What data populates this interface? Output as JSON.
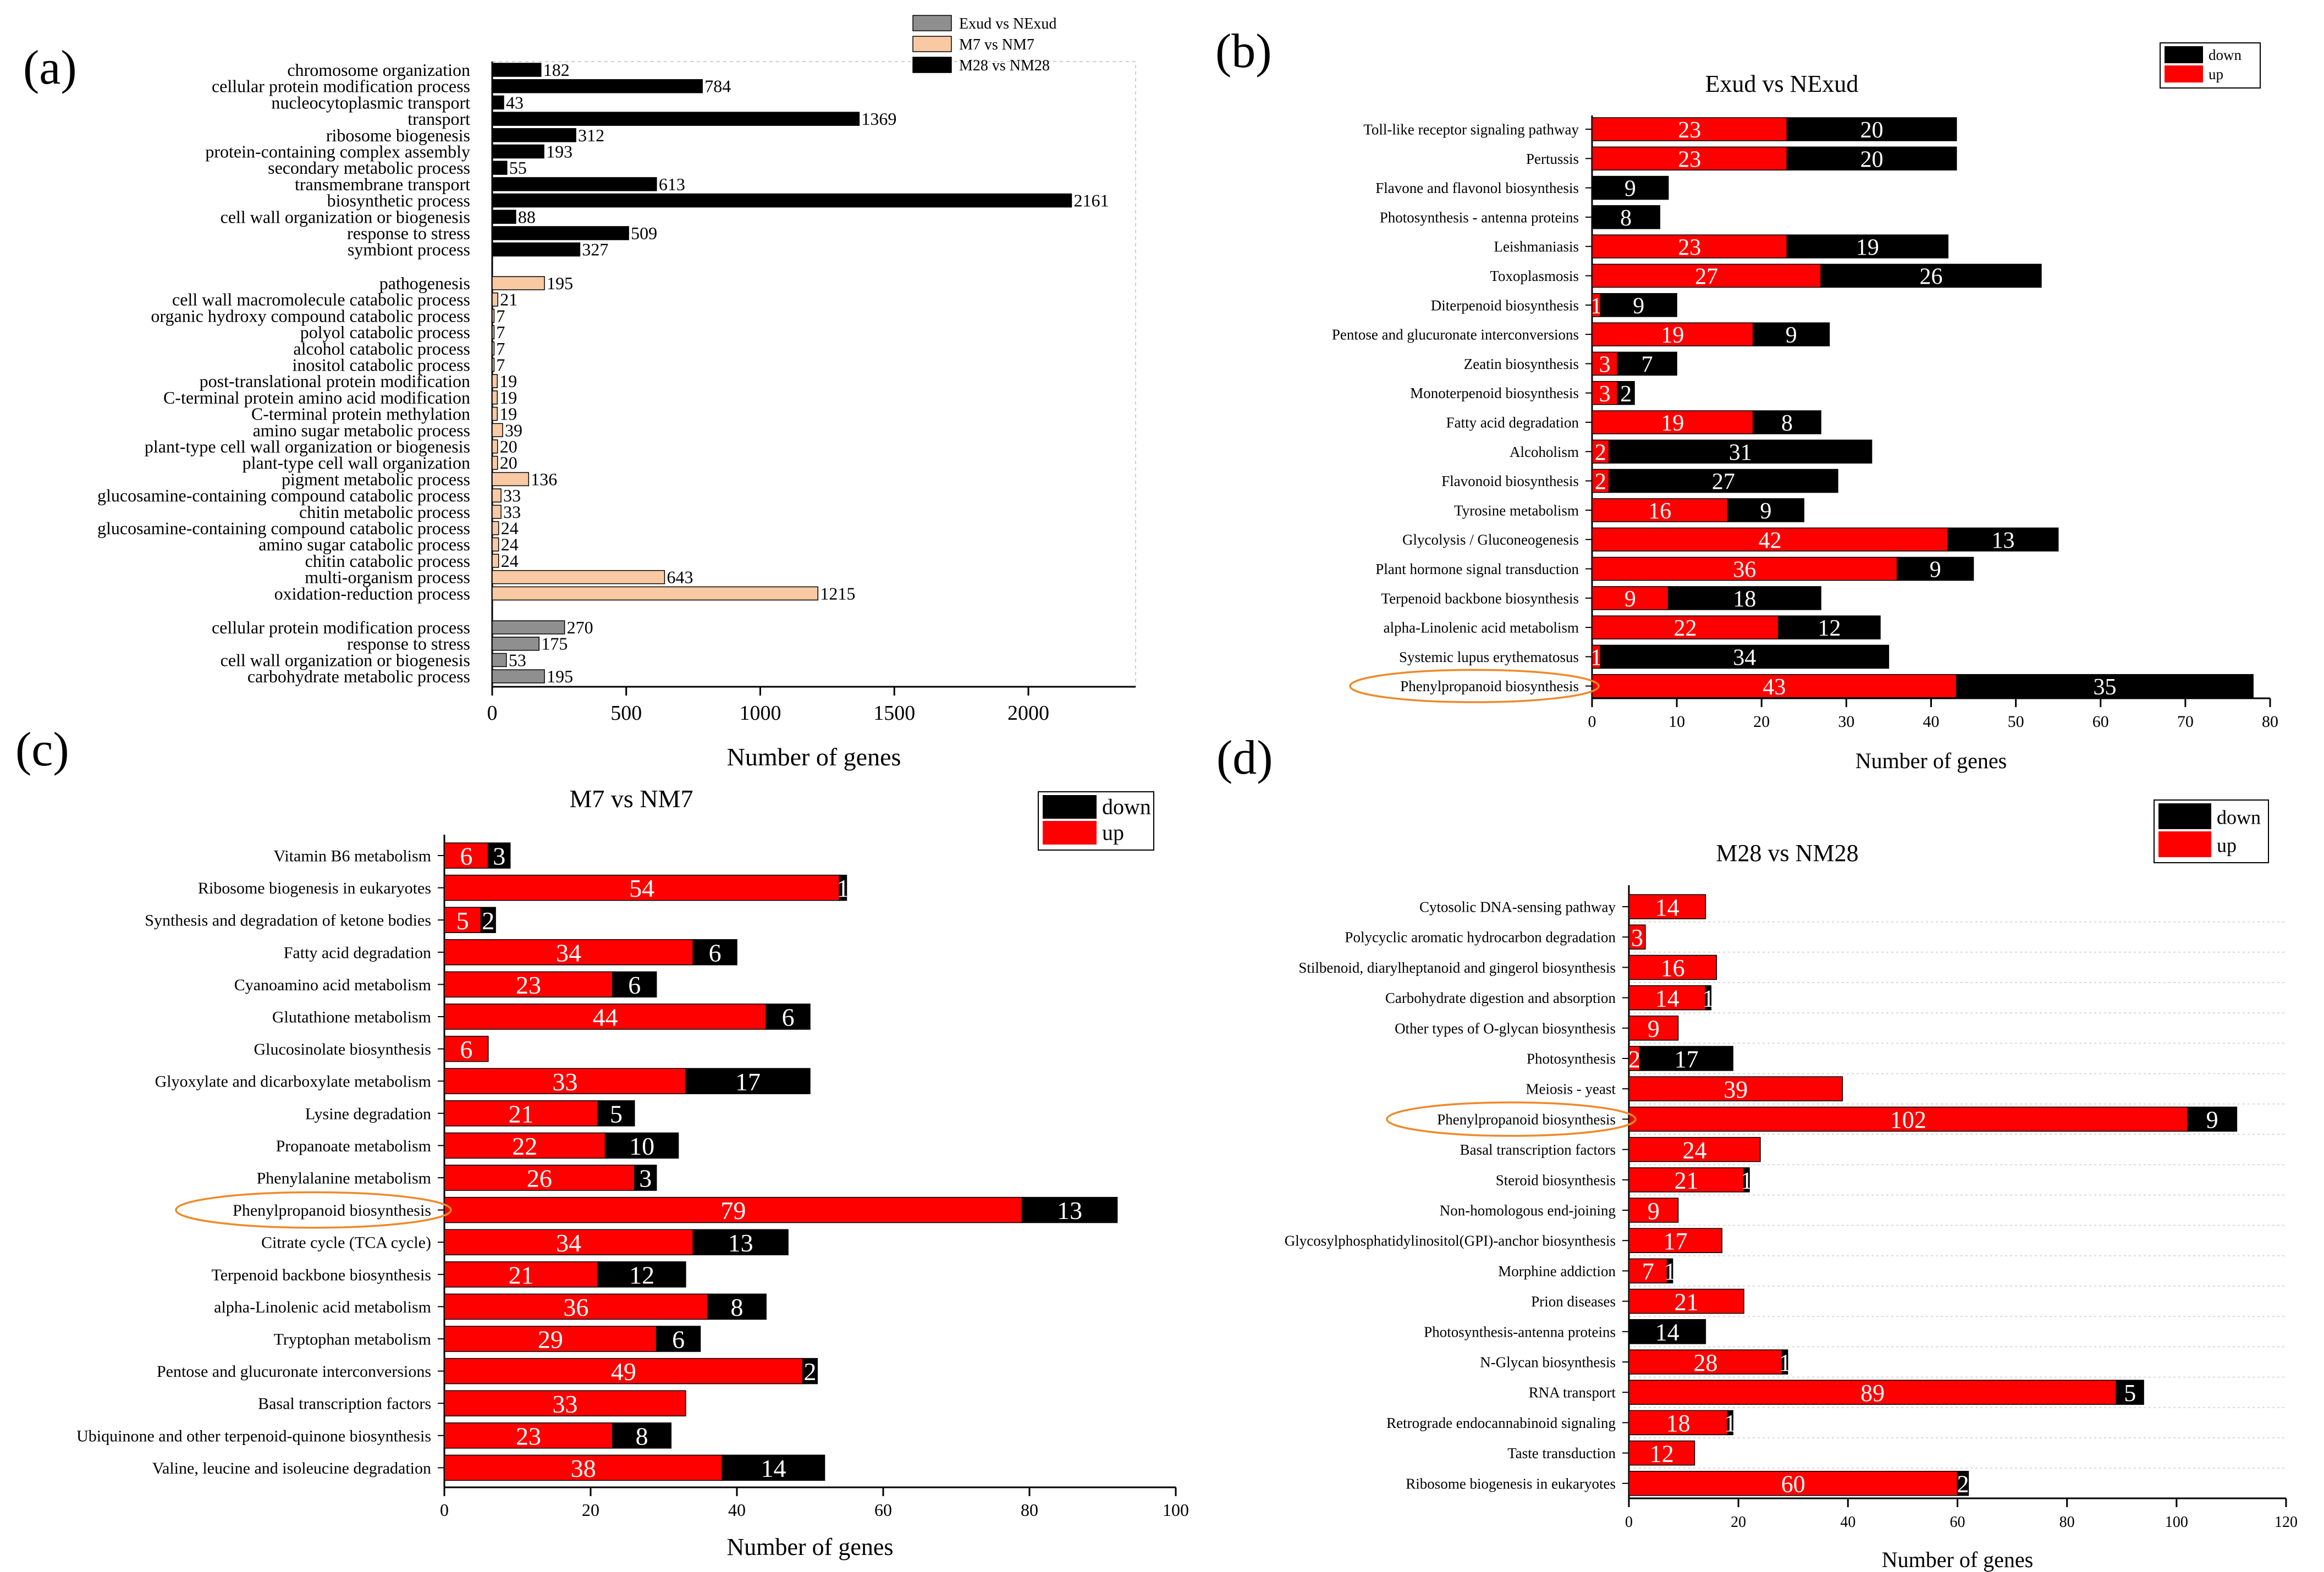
{
  "colors": {
    "black": "#000000",
    "red": "#ff0000",
    "gray": "#8f8f8f",
    "peach": "#f9c9a3",
    "orange": "#ee8a2a",
    "grid": "#d9d9d9"
  },
  "chart_data": [
    {
      "id": "a",
      "panel_label": "(a)",
      "type": "bar",
      "orientation": "horizontal",
      "title": "",
      "xlabel": "Number of genes",
      "xlim": [
        0,
        2400
      ],
      "xticks": [
        0,
        500,
        1000,
        1500,
        2000
      ],
      "legend": [
        {
          "label": "Exud vs NExud",
          "color": "#8f8f8f"
        },
        {
          "label": "M7 vs NM7",
          "color": "#f9c9a3"
        },
        {
          "label": "M28 vs NM28",
          "color": "#000000"
        }
      ],
      "groups": [
        {
          "name": "M28 vs NM28",
          "color": "#000000",
          "items": [
            {
              "label": "chromosome organization",
              "value": 182
            },
            {
              "label": "cellular protein modification process",
              "value": 784
            },
            {
              "label": "nucleocytoplasmic transport",
              "value": 43
            },
            {
              "label": "transport",
              "value": 1369
            },
            {
              "label": "ribosome biogenesis",
              "value": 312
            },
            {
              "label": "protein-containing complex assembly",
              "value": 193
            },
            {
              "label": "secondary metabolic process",
              "value": 55
            },
            {
              "label": "transmembrane transport",
              "value": 613
            },
            {
              "label": "biosynthetic process",
              "value": 2161
            },
            {
              "label": "cell wall organization or biogenesis",
              "value": 88
            },
            {
              "label": "response to stress",
              "value": 509
            },
            {
              "label": "symbiont process",
              "value": 327
            }
          ]
        },
        {
          "name": "M7 vs NM7",
          "color": "#f9c9a3",
          "items": [
            {
              "label": "pathogenesis",
              "value": 195
            },
            {
              "label": "cell wall macromolecule catabolic process",
              "value": 21
            },
            {
              "label": "organic hydroxy compound catabolic process",
              "value": 7
            },
            {
              "label": "polyol catabolic process",
              "value": 7
            },
            {
              "label": "alcohol catabolic process",
              "value": 7
            },
            {
              "label": "inositol catabolic process",
              "value": 7
            },
            {
              "label": "post-translational protein modification",
              "value": 19
            },
            {
              "label": "C-terminal protein amino acid modification",
              "value": 19
            },
            {
              "label": "C-terminal protein methylation",
              "value": 19
            },
            {
              "label": "amino sugar metabolic process",
              "value": 39
            },
            {
              "label": "plant-type cell wall organization or biogenesis",
              "value": 20
            },
            {
              "label": "plant-type cell wall organization",
              "value": 20
            },
            {
              "label": "pigment metabolic process",
              "value": 136
            },
            {
              "label": "glucosamine-containing compound catabolic process",
              "value": 33
            },
            {
              "label": "chitin metabolic process",
              "value": 33
            },
            {
              "label": "glucosamine-containing compound catabolic process",
              "value": 24
            },
            {
              "label": "amino sugar catabolic process",
              "value": 24
            },
            {
              "label": "chitin catabolic process",
              "value": 24
            },
            {
              "label": "multi-organism process",
              "value": 643
            },
            {
              "label": "oxidation-reduction process",
              "value": 1215
            }
          ]
        },
        {
          "name": "Exud vs NExud",
          "color": "#8f8f8f",
          "items": [
            {
              "label": "cellular protein modification process",
              "value": 270
            },
            {
              "label": "response to stress",
              "value": 175
            },
            {
              "label": "cell wall organization or biogenesis",
              "value": 53
            },
            {
              "label": "carbohydrate metabolic process",
              "value": 195
            }
          ]
        }
      ]
    },
    {
      "id": "b",
      "panel_label": "(b)",
      "type": "bar",
      "orientation": "horizontal",
      "stacked": true,
      "title": "Exud vs NExud",
      "xlabel": "Number of genes",
      "xlim": [
        0,
        80
      ],
      "xticks": [
        0,
        10,
        20,
        30,
        40,
        50,
        60,
        70,
        80
      ],
      "legend": [
        {
          "label": "down",
          "color": "#000000"
        },
        {
          "label": "up",
          "color": "#ff0000"
        }
      ],
      "highlight": "Phenylpropanoid biosynthesis",
      "categories": [
        "Toll-like receptor signaling pathway",
        "Pertussis",
        "Flavone and flavonol biosynthesis",
        "Photosynthesis - antenna proteins",
        "Leishmaniasis",
        "Toxoplasmosis",
        "Diterpenoid biosynthesis",
        "Pentose and glucuronate interconversions",
        "Zeatin biosynthesis",
        "Monoterpenoid biosynthesis",
        "Fatty acid degradation",
        "Alcoholism",
        "Flavonoid biosynthesis",
        "Tyrosine metabolism",
        "Glycolysis / Gluconeogenesis",
        "Plant hormone signal transduction",
        "Terpenoid backbone biosynthesis",
        "alpha-Linolenic acid metabolism",
        "Systemic lupus erythematosus",
        "Phenylpropanoid biosynthesis"
      ],
      "series": [
        {
          "name": "up",
          "values": [
            23,
            23,
            0,
            0,
            23,
            27,
            1,
            19,
            3,
            3,
            19,
            2,
            2,
            16,
            42,
            36,
            9,
            22,
            1,
            43
          ]
        },
        {
          "name": "down",
          "values": [
            20,
            20,
            9,
            8,
            19,
            26,
            9,
            9,
            7,
            2,
            8,
            31,
            27,
            9,
            13,
            9,
            18,
            12,
            34,
            35
          ]
        }
      ]
    },
    {
      "id": "c",
      "panel_label": "(c)",
      "type": "bar",
      "orientation": "horizontal",
      "stacked": true,
      "title": "M7 vs NM7",
      "xlabel": "Number of genes",
      "xlim": [
        0,
        100
      ],
      "xticks": [
        0,
        20,
        40,
        60,
        80,
        100
      ],
      "legend": [
        {
          "label": "down",
          "color": "#000000"
        },
        {
          "label": "up",
          "color": "#ff0000"
        }
      ],
      "highlight": "Phenylpropanoid biosynthesis",
      "categories": [
        "Vitamin B6 metabolism",
        "Ribosome biogenesis in eukaryotes",
        "Synthesis and degradation of ketone bodies",
        "Fatty acid degradation",
        "Cyanoamino acid metabolism",
        "Glutathione metabolism",
        "Glucosinolate biosynthesis",
        "Glyoxylate and dicarboxylate metabolism",
        "Lysine degradation",
        "Propanoate metabolism",
        "Phenylalanine metabolism",
        "Phenylpropanoid biosynthesis",
        "Citrate cycle (TCA cycle)",
        "Terpenoid backbone biosynthesis",
        "alpha-Linolenic acid metabolism",
        "Tryptophan metabolism",
        "Pentose and glucuronate interconversions",
        "Basal transcription factors",
        "Ubiquinone and other terpenoid-quinone biosynthesis",
        "Valine, leucine and isoleucine degradation"
      ],
      "series": [
        {
          "name": "up",
          "values": [
            6,
            54,
            5,
            34,
            23,
            44,
            6,
            33,
            21,
            22,
            26,
            79,
            34,
            21,
            36,
            29,
            49,
            33,
            23,
            38
          ]
        },
        {
          "name": "down",
          "values": [
            3,
            1,
            2,
            6,
            6,
            6,
            0,
            17,
            5,
            10,
            3,
            13,
            13,
            12,
            8,
            6,
            2,
            0,
            8,
            14
          ]
        }
      ]
    },
    {
      "id": "d",
      "panel_label": "(d)",
      "type": "bar",
      "orientation": "horizontal",
      "stacked": true,
      "title": "M28 vs NM28",
      "xlabel": "Number of genes",
      "xlim": [
        0,
        120
      ],
      "xticks": [
        0,
        20,
        40,
        60,
        80,
        100,
        120
      ],
      "legend": [
        {
          "label": "down",
          "color": "#000000"
        },
        {
          "label": "up",
          "color": "#ff0000"
        }
      ],
      "highlight": "Phenylpropanoid biosynthesis",
      "categories": [
        "Cytosolic DNA-sensing pathway",
        "Polycyclic aromatic hydrocarbon degradation",
        "Stilbenoid, diarylheptanoid and gingerol biosynthesis",
        "Carbohydrate digestion and absorption",
        "Other types of O-glycan biosynthesis",
        "Photosynthesis",
        "Meiosis - yeast",
        "Phenylpropanoid biosynthesis",
        "Basal transcription factors",
        "Steroid biosynthesis",
        "Non-homologous end-joining",
        "Glycosylphosphatidylinositol(GPI)-anchor biosynthesis",
        "Morphine addiction",
        "Prion diseases",
        "Photosynthesis-antenna proteins",
        "N-Glycan biosynthesis",
        "RNA transport",
        "Retrograde endocannabinoid signaling",
        "Taste transduction",
        "Ribosome biogenesis in eukaryotes"
      ],
      "series": [
        {
          "name": "up",
          "values": [
            14,
            3,
            16,
            14,
            9,
            2,
            39,
            102,
            24,
            21,
            9,
            17,
            7,
            21,
            0,
            28,
            89,
            18,
            12,
            60
          ]
        },
        {
          "name": "down",
          "values": [
            0,
            0,
            0,
            1,
            0,
            17,
            0,
            9,
            0,
            1,
            0,
            0,
            1,
            0,
            14,
            1,
            5,
            1,
            0,
            2
          ]
        }
      ]
    }
  ]
}
